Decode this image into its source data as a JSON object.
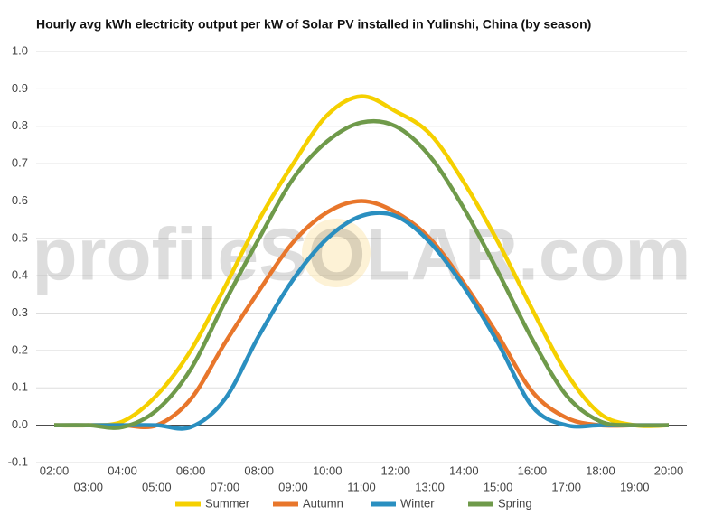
{
  "chart_data": {
    "type": "line",
    "title": "Hourly avg kWh electricity output per kW of Solar PV installed in Yulinshi, China (by season)",
    "watermark": "profileSOLAR.com",
    "categories": [
      "02:00",
      "03:00",
      "04:00",
      "05:00",
      "06:00",
      "07:00",
      "08:00",
      "09:00",
      "10:00",
      "11:00",
      "12:00",
      "13:00",
      "14:00",
      "15:00",
      "16:00",
      "17:00",
      "18:00",
      "19:00",
      "20:00"
    ],
    "series": [
      {
        "name": "Summer",
        "color": "#f5d000",
        "values": [
          0,
          0,
          0.01,
          0.08,
          0.2,
          0.37,
          0.55,
          0.7,
          0.83,
          0.88,
          0.84,
          0.78,
          0.65,
          0.49,
          0.31,
          0.14,
          0.03,
          0,
          0
        ]
      },
      {
        "name": "Autumn",
        "color": "#e8762b",
        "values": [
          0,
          0,
          0,
          0,
          0.07,
          0.22,
          0.36,
          0.49,
          0.57,
          0.6,
          0.57,
          0.5,
          0.38,
          0.24,
          0.09,
          0.02,
          0,
          0,
          0
        ]
      },
      {
        "name": "Winter",
        "color": "#2a8fc0",
        "values": [
          0,
          0,
          0,
          0,
          -0.005,
          0.07,
          0.24,
          0.39,
          0.5,
          0.56,
          0.56,
          0.49,
          0.37,
          0.22,
          0.05,
          0,
          0,
          0,
          0
        ]
      },
      {
        "name": "Spring",
        "color": "#6f9a4a",
        "values": [
          0,
          0,
          -0.005,
          0.04,
          0.15,
          0.33,
          0.5,
          0.66,
          0.76,
          0.81,
          0.8,
          0.72,
          0.58,
          0.41,
          0.23,
          0.08,
          0.01,
          0,
          0
        ]
      }
    ],
    "ylim": [
      -0.1,
      1.0
    ],
    "yticks": [
      -0.1,
      {
        "value": 0,
        "label": "0.0"
      },
      0.1,
      0.2,
      0.3,
      0.4,
      0.5,
      0.6,
      0.7,
      0.8,
      0.9,
      {
        "value": 1,
        "label": "1.0"
      }
    ],
    "grid": true,
    "legend": "bottom"
  }
}
